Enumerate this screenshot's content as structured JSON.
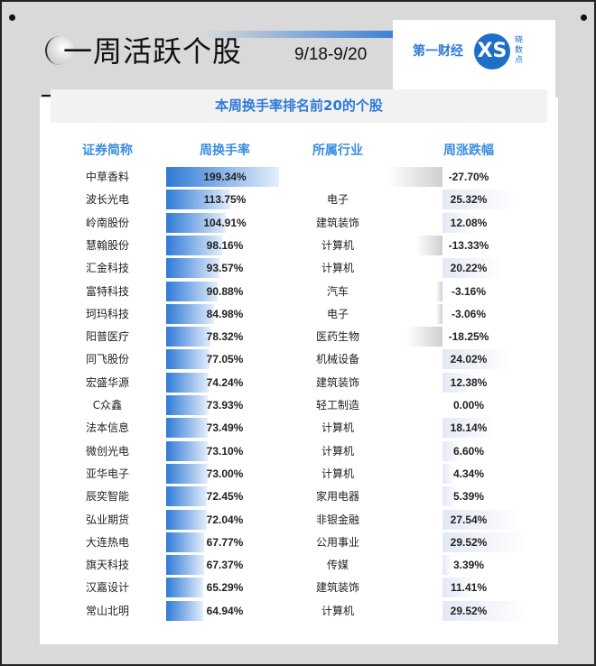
{
  "header": {
    "title": "一周活跃个股",
    "date": "9/18-9/20",
    "logo_text": "第一财经",
    "logo_mark": "XS",
    "logo_side": "晓数点"
  },
  "banner": "本周换手率排名前20的个股",
  "columns": [
    "证券简称",
    "周换手率",
    "所属行业",
    "周涨跌幅"
  ],
  "colors": {
    "accent": "#2f7ad6",
    "header_text": "#3a8ee0"
  },
  "rows": [
    {
      "name": "中草香料",
      "turnover": 199.34,
      "turnover_label": "199.34%",
      "industry": "",
      "change": -27.7,
      "change_label": "-27.70%"
    },
    {
      "name": "波长光电",
      "turnover": 113.75,
      "turnover_label": "113.75%",
      "industry": "电子",
      "change": 25.32,
      "change_label": "25.32%"
    },
    {
      "name": "岭南股份",
      "turnover": 104.91,
      "turnover_label": "104.91%",
      "industry": "建筑装饰",
      "change": 12.08,
      "change_label": "12.08%"
    },
    {
      "name": "慧翰股份",
      "turnover": 98.16,
      "turnover_label": "98.16%",
      "industry": "计算机",
      "change": -13.33,
      "change_label": "-13.33%"
    },
    {
      "name": "汇金科技",
      "turnover": 93.57,
      "turnover_label": "93.57%",
      "industry": "计算机",
      "change": 20.22,
      "change_label": "20.22%"
    },
    {
      "name": "富特科技",
      "turnover": 90.88,
      "turnover_label": "90.88%",
      "industry": "汽车",
      "change": -3.16,
      "change_label": "-3.16%"
    },
    {
      "name": "珂玛科技",
      "turnover": 84.98,
      "turnover_label": "84.98%",
      "industry": "电子",
      "change": -3.06,
      "change_label": "-3.06%"
    },
    {
      "name": "阳普医疗",
      "turnover": 78.32,
      "turnover_label": "78.32%",
      "industry": "医药生物",
      "change": -18.25,
      "change_label": "-18.25%"
    },
    {
      "name": "同飞股份",
      "turnover": 77.05,
      "turnover_label": "77.05%",
      "industry": "机械设备",
      "change": 24.02,
      "change_label": "24.02%"
    },
    {
      "name": "宏盛华源",
      "turnover": 74.24,
      "turnover_label": "74.24%",
      "industry": "建筑装饰",
      "change": 12.38,
      "change_label": "12.38%"
    },
    {
      "name": "C众鑫",
      "turnover": 73.93,
      "turnover_label": "73.93%",
      "industry": "轻工制造",
      "change": 0.0,
      "change_label": "0.00%"
    },
    {
      "name": "法本信息",
      "turnover": 73.49,
      "turnover_label": "73.49%",
      "industry": "计算机",
      "change": 18.14,
      "change_label": "18.14%"
    },
    {
      "name": "微创光电",
      "turnover": 73.1,
      "turnover_label": "73.10%",
      "industry": "计算机",
      "change": 6.6,
      "change_label": "6.60%"
    },
    {
      "name": "亚华电子",
      "turnover": 73.0,
      "turnover_label": "73.00%",
      "industry": "计算机",
      "change": 4.34,
      "change_label": "4.34%"
    },
    {
      "name": "辰奕智能",
      "turnover": 72.45,
      "turnover_label": "72.45%",
      "industry": "家用电器",
      "change": 5.39,
      "change_label": "5.39%"
    },
    {
      "name": "弘业期货",
      "turnover": 72.04,
      "turnover_label": "72.04%",
      "industry": "非银金融",
      "change": 27.54,
      "change_label": "27.54%"
    },
    {
      "name": "大连热电",
      "turnover": 67.77,
      "turnover_label": "67.77%",
      "industry": "公用事业",
      "change": 29.52,
      "change_label": "29.52%"
    },
    {
      "name": "旗天科技",
      "turnover": 67.37,
      "turnover_label": "67.37%",
      "industry": "传媒",
      "change": 3.39,
      "change_label": "3.39%"
    },
    {
      "name": "汉嘉设计",
      "turnover": 65.29,
      "turnover_label": "65.29%",
      "industry": "建筑装饰",
      "change": 11.41,
      "change_label": "11.41%"
    },
    {
      "name": "常山北明",
      "turnover": 64.94,
      "turnover_label": "64.94%",
      "industry": "计算机",
      "change": 29.52,
      "change_label": "29.52%"
    }
  ]
}
